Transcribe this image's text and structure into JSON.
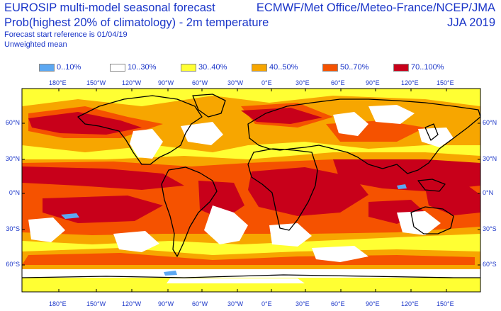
{
  "header": {
    "title_line1": "EUROSIP multi-model seasonal forecast",
    "title_line2": "Prob(highest 20% of climatology) - 2m temperature",
    "start_reference": "Forecast start reference is 01/04/19",
    "weighting": "Unweighted mean",
    "centres": "ECMWF/Met Office/Meteo-France/NCEP/JMA",
    "season": "JJA 2019"
  },
  "legend": [
    {
      "label": "0..10%",
      "color": "#5ca8f2"
    },
    {
      "label": "10..30%",
      "color": "#ffffff"
    },
    {
      "label": "30..40%",
      "color": "#ffff33"
    },
    {
      "label": "40..50%",
      "color": "#f7a600"
    },
    {
      "label": "50..70%",
      "color": "#f55200"
    },
    {
      "label": "70..100%",
      "color": "#c8001a"
    }
  ],
  "axes": {
    "longitude_ticks": [
      "180°E",
      "150°W",
      "120°W",
      "90°W",
      "60°W",
      "30°W",
      "0°E",
      "30°E",
      "60°E",
      "90°E",
      "120°E",
      "150°E"
    ],
    "latitude_ticks": [
      "60°N",
      "30°N",
      "0°N",
      "30°S",
      "60°S"
    ]
  }
}
